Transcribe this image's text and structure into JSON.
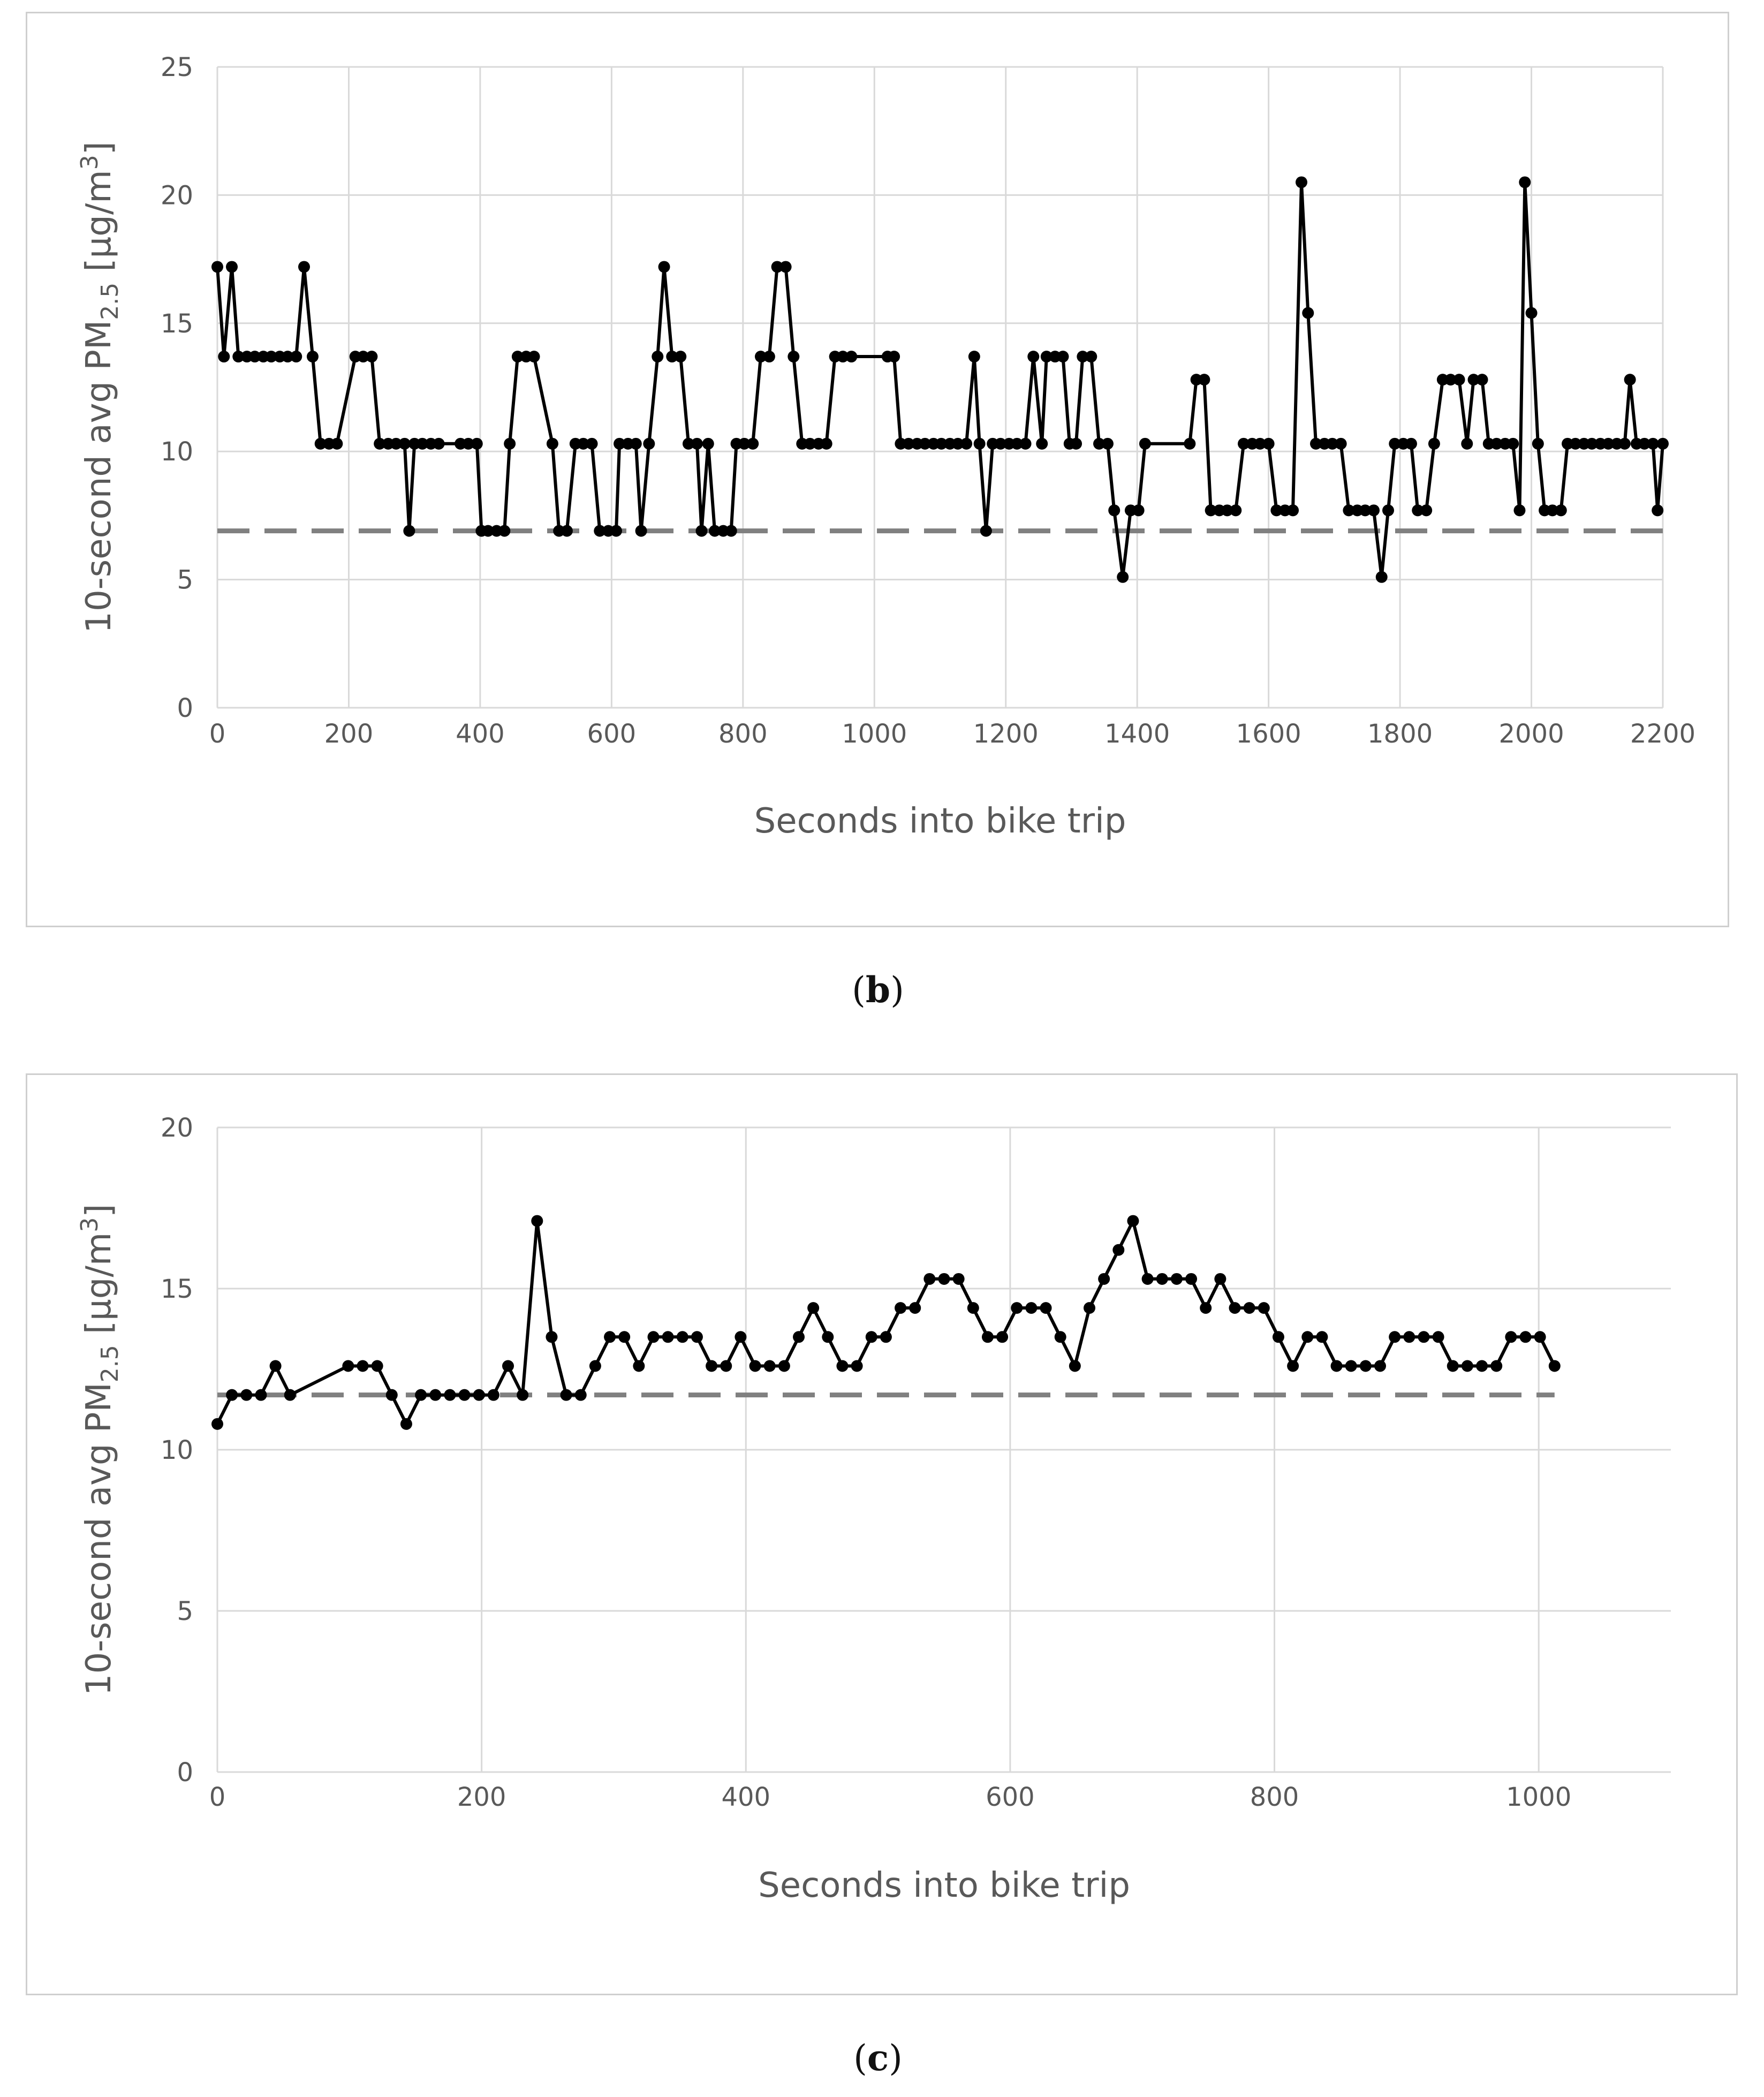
{
  "captions": {
    "b": "b",
    "c": "c"
  },
  "chart_data": [
    {
      "id": "b",
      "type": "line",
      "xlabel": "Seconds into bike trip",
      "ylabel_main": "10-second avg PM",
      "ylabel_sub": "2.5",
      "ylabel_unit_pre": " [µg/m",
      "ylabel_unit_sup": "3",
      "ylabel_unit_post": "]",
      "xlim": [
        0,
        2200
      ],
      "ylim": [
        0,
        25
      ],
      "xticks": [
        0,
        200,
        400,
        600,
        800,
        1000,
        1200,
        1400,
        1600,
        1800,
        2000,
        2200
      ],
      "yticks": [
        0,
        5,
        10,
        15,
        20,
        25
      ],
      "grid": true,
      "reference_line": 6.9,
      "series": [
        {
          "name": "PM2.5",
          "points": [
            [
              0,
              17.2
            ],
            [
              10,
              13.7
            ],
            [
              22,
              17.2
            ],
            [
              32,
              13.7
            ],
            [
              45,
              13.7
            ],
            [
              57,
              13.7
            ],
            [
              70,
              13.7
            ],
            [
              82,
              13.7
            ],
            [
              95,
              13.7
            ],
            [
              107,
              13.7
            ],
            [
              120,
              13.7
            ],
            [
              132,
              17.2
            ],
            [
              145,
              13.7
            ],
            [
              157,
              10.3
            ],
            [
              170,
              10.3
            ],
            [
              182,
              10.3
            ],
            [
              210,
              13.7
            ],
            [
              222,
              13.7
            ],
            [
              235,
              13.7
            ],
            [
              247,
              10.3
            ],
            [
              260,
              10.3
            ],
            [
              272,
              10.3
            ],
            [
              285,
              10.3
            ],
            [
              292,
              6.9
            ],
            [
              300,
              10.3
            ],
            [
              312,
              10.3
            ],
            [
              325,
              10.3
            ],
            [
              337,
              10.3
            ],
            [
              370,
              10.3
            ],
            [
              382,
              10.3
            ],
            [
              395,
              10.3
            ],
            [
              402,
              6.9
            ],
            [
              412,
              6.9
            ],
            [
              425,
              6.9
            ],
            [
              437,
              6.9
            ],
            [
              445,
              10.3
            ],
            [
              457,
              13.7
            ],
            [
              470,
              13.7
            ],
            [
              482,
              13.7
            ],
            [
              510,
              10.3
            ],
            [
              520,
              6.9
            ],
            [
              532,
              6.9
            ],
            [
              545,
              10.3
            ],
            [
              557,
              10.3
            ],
            [
              570,
              10.3
            ],
            [
              582,
              6.9
            ],
            [
              595,
              6.9
            ],
            [
              607,
              6.9
            ],
            [
              612,
              10.3
            ],
            [
              625,
              10.3
            ],
            [
              637,
              10.3
            ],
            [
              645,
              6.9
            ],
            [
              657,
              10.3
            ],
            [
              670,
              13.7
            ],
            [
              680,
              17.2
            ],
            [
              692,
              13.7
            ],
            [
              705,
              13.7
            ],
            [
              717,
              10.3
            ],
            [
              730,
              10.3
            ],
            [
              737,
              6.9
            ],
            [
              747,
              10.3
            ],
            [
              757,
              6.9
            ],
            [
              770,
              6.9
            ],
            [
              782,
              6.9
            ],
            [
              790,
              10.3
            ],
            [
              802,
              10.3
            ],
            [
              815,
              10.3
            ],
            [
              827,
              13.7
            ],
            [
              840,
              13.7
            ],
            [
              852,
              17.2
            ],
            [
              865,
              17.2
            ],
            [
              877,
              13.7
            ],
            [
              890,
              10.3
            ],
            [
              902,
              10.3
            ],
            [
              915,
              10.3
            ],
            [
              927,
              10.3
            ],
            [
              940,
              13.7
            ],
            [
              952,
              13.7
            ],
            [
              965,
              13.7
            ],
            [
              1020,
              13.7
            ],
            [
              1030,
              13.7
            ],
            [
              1040,
              10.3
            ],
            [
              1052,
              10.3
            ],
            [
              1065,
              10.3
            ],
            [
              1077,
              10.3
            ],
            [
              1090,
              10.3
            ],
            [
              1102,
              10.3
            ],
            [
              1115,
              10.3
            ],
            [
              1127,
              10.3
            ],
            [
              1140,
              10.3
            ],
            [
              1152,
              13.7
            ],
            [
              1160,
              10.3
            ],
            [
              1170,
              6.9
            ],
            [
              1180,
              10.3
            ],
            [
              1192,
              10.3
            ],
            [
              1205,
              10.3
            ],
            [
              1217,
              10.3
            ],
            [
              1230,
              10.3
            ],
            [
              1242,
              13.7
            ],
            [
              1255,
              10.3
            ],
            [
              1262,
              13.7
            ],
            [
              1275,
              13.7
            ],
            [
              1287,
              13.7
            ],
            [
              1297,
              10.3
            ],
            [
              1307,
              10.3
            ],
            [
              1317,
              13.7
            ],
            [
              1330,
              13.7
            ],
            [
              1342,
              10.3
            ],
            [
              1355,
              10.3
            ],
            [
              1365,
              7.7
            ],
            [
              1378,
              5.1
            ],
            [
              1390,
              7.7
            ],
            [
              1402,
              7.7
            ],
            [
              1412,
              10.3
            ],
            [
              1480,
              10.3
            ],
            [
              1490,
              12.8
            ],
            [
              1502,
              12.8
            ],
            [
              1512,
              7.7
            ],
            [
              1525,
              7.7
            ],
            [
              1537,
              7.7
            ],
            [
              1550,
              7.7
            ],
            [
              1562,
              10.3
            ],
            [
              1575,
              10.3
            ],
            [
              1587,
              10.3
            ],
            [
              1600,
              10.3
            ],
            [
              1612,
              7.7
            ],
            [
              1625,
              7.7
            ],
            [
              1637,
              7.7
            ],
            [
              1650,
              20.5
            ],
            [
              1660,
              15.4
            ],
            [
              1672,
              10.3
            ],
            [
              1685,
              10.3
            ],
            [
              1697,
              10.3
            ],
            [
              1710,
              10.3
            ],
            [
              1722,
              7.7
            ],
            [
              1735,
              7.7
            ],
            [
              1747,
              7.7
            ],
            [
              1760,
              7.7
            ],
            [
              1772,
              5.1
            ],
            [
              1782,
              7.7
            ],
            [
              1792,
              10.3
            ],
            [
              1805,
              10.3
            ],
            [
              1817,
              10.3
            ],
            [
              1827,
              7.7
            ],
            [
              1840,
              7.7
            ],
            [
              1852,
              10.3
            ],
            [
              1865,
              12.8
            ],
            [
              1877,
              12.8
            ],
            [
              1890,
              12.8
            ],
            [
              1902,
              10.3
            ],
            [
              1912,
              12.8
            ],
            [
              1925,
              12.8
            ],
            [
              1935,
              10.3
            ],
            [
              1947,
              10.3
            ],
            [
              1960,
              10.3
            ],
            [
              1972,
              10.3
            ],
            [
              1982,
              7.7
            ],
            [
              1990,
              20.5
            ],
            [
              2000,
              15.4
            ],
            [
              2010,
              10.3
            ],
            [
              2020,
              7.7
            ],
            [
              2032,
              7.7
            ],
            [
              2045,
              7.7
            ],
            [
              2055,
              10.3
            ],
            [
              2067,
              10.3
            ],
            [
              2080,
              10.3
            ],
            [
              2092,
              10.3
            ],
            [
              2105,
              10.3
            ],
            [
              2117,
              10.3
            ],
            [
              2130,
              10.3
            ],
            [
              2142,
              10.3
            ],
            [
              2150,
              12.8
            ],
            [
              2160,
              10.3
            ],
            [
              2172,
              10.3
            ],
            [
              2185,
              10.3
            ],
            [
              2192,
              7.7
            ],
            [
              2200,
              10.3
            ]
          ]
        }
      ]
    },
    {
      "id": "c",
      "type": "line",
      "xlabel": "Seconds into bike trip",
      "ylabel_main": "10-second avg PM",
      "ylabel_sub": "2.5",
      "ylabel_unit_pre": " [µg/m",
      "ylabel_unit_sup": "3",
      "ylabel_unit_post": "]",
      "xlim": [
        0,
        1100
      ],
      "ylim": [
        0,
        20
      ],
      "xticks": [
        0,
        200,
        400,
        600,
        800,
        1000
      ],
      "yticks": [
        0,
        5,
        10,
        15,
        20
      ],
      "grid": true,
      "reference_line": 11.7,
      "series": [
        {
          "name": "PM2.5",
          "points": [
            [
              0,
              10.8
            ],
            [
              11,
              11.7
            ],
            [
              22,
              11.7
            ],
            [
              33,
              11.7
            ],
            [
              44,
              12.6
            ],
            [
              55,
              11.7
            ],
            [
              99,
              12.6
            ],
            [
              110,
              12.6
            ],
            [
              121,
              12.6
            ],
            [
              132,
              11.7
            ],
            [
              143,
              10.8
            ],
            [
              154,
              11.7
            ],
            [
              165,
              11.7
            ],
            [
              176,
              11.7
            ],
            [
              187,
              11.7
            ],
            [
              198,
              11.7
            ],
            [
              209,
              11.7
            ],
            [
              220,
              12.6
            ],
            [
              231,
              11.7
            ],
            [
              242,
              17.1
            ],
            [
              253,
              13.5
            ],
            [
              264,
              11.7
            ],
            [
              275,
              11.7
            ],
            [
              286,
              12.6
            ],
            [
              297,
              13.5
            ],
            [
              308,
              13.5
            ],
            [
              319,
              12.6
            ],
            [
              330,
              13.5
            ],
            [
              341,
              13.5
            ],
            [
              352,
              13.5
            ],
            [
              363,
              13.5
            ],
            [
              374,
              12.6
            ],
            [
              385,
              12.6
            ],
            [
              396,
              13.5
            ],
            [
              407,
              12.6
            ],
            [
              418,
              12.6
            ],
            [
              429,
              12.6
            ],
            [
              440,
              13.5
            ],
            [
              451,
              14.4
            ],
            [
              462,
              13.5
            ],
            [
              473,
              12.6
            ],
            [
              484,
              12.6
            ],
            [
              495,
              13.5
            ],
            [
              506,
              13.5
            ],
            [
              517,
              14.4
            ],
            [
              528,
              14.4
            ],
            [
              539,
              15.3
            ],
            [
              550,
              15.3
            ],
            [
              561,
              15.3
            ],
            [
              572,
              14.4
            ],
            [
              583,
              13.5
            ],
            [
              594,
              13.5
            ],
            [
              605,
              14.4
            ],
            [
              616,
              14.4
            ],
            [
              627,
              14.4
            ],
            [
              638,
              13.5
            ],
            [
              649,
              12.6
            ],
            [
              660,
              14.4
            ],
            [
              671,
              15.3
            ],
            [
              682,
              16.2
            ],
            [
              693,
              17.1
            ],
            [
              704,
              15.3
            ],
            [
              715,
              15.3
            ],
            [
              726,
              15.3
            ],
            [
              737,
              15.3
            ],
            [
              748,
              14.4
            ],
            [
              759,
              15.3
            ],
            [
              770,
              14.4
            ],
            [
              781,
              14.4
            ],
            [
              792,
              14.4
            ],
            [
              803,
              13.5
            ],
            [
              814,
              12.6
            ],
            [
              825,
              13.5
            ],
            [
              836,
              13.5
            ],
            [
              847,
              12.6
            ],
            [
              858,
              12.6
            ],
            [
              869,
              12.6
            ],
            [
              880,
              12.6
            ],
            [
              891,
              13.5
            ],
            [
              902,
              13.5
            ],
            [
              913,
              13.5
            ],
            [
              924,
              13.5
            ],
            [
              935,
              12.6
            ],
            [
              946,
              12.6
            ],
            [
              957,
              12.6
            ],
            [
              968,
              12.6
            ],
            [
              979,
              13.5
            ],
            [
              990,
              13.5
            ],
            [
              1001,
              13.5
            ],
            [
              1012,
              12.6
            ]
          ]
        }
      ]
    }
  ]
}
